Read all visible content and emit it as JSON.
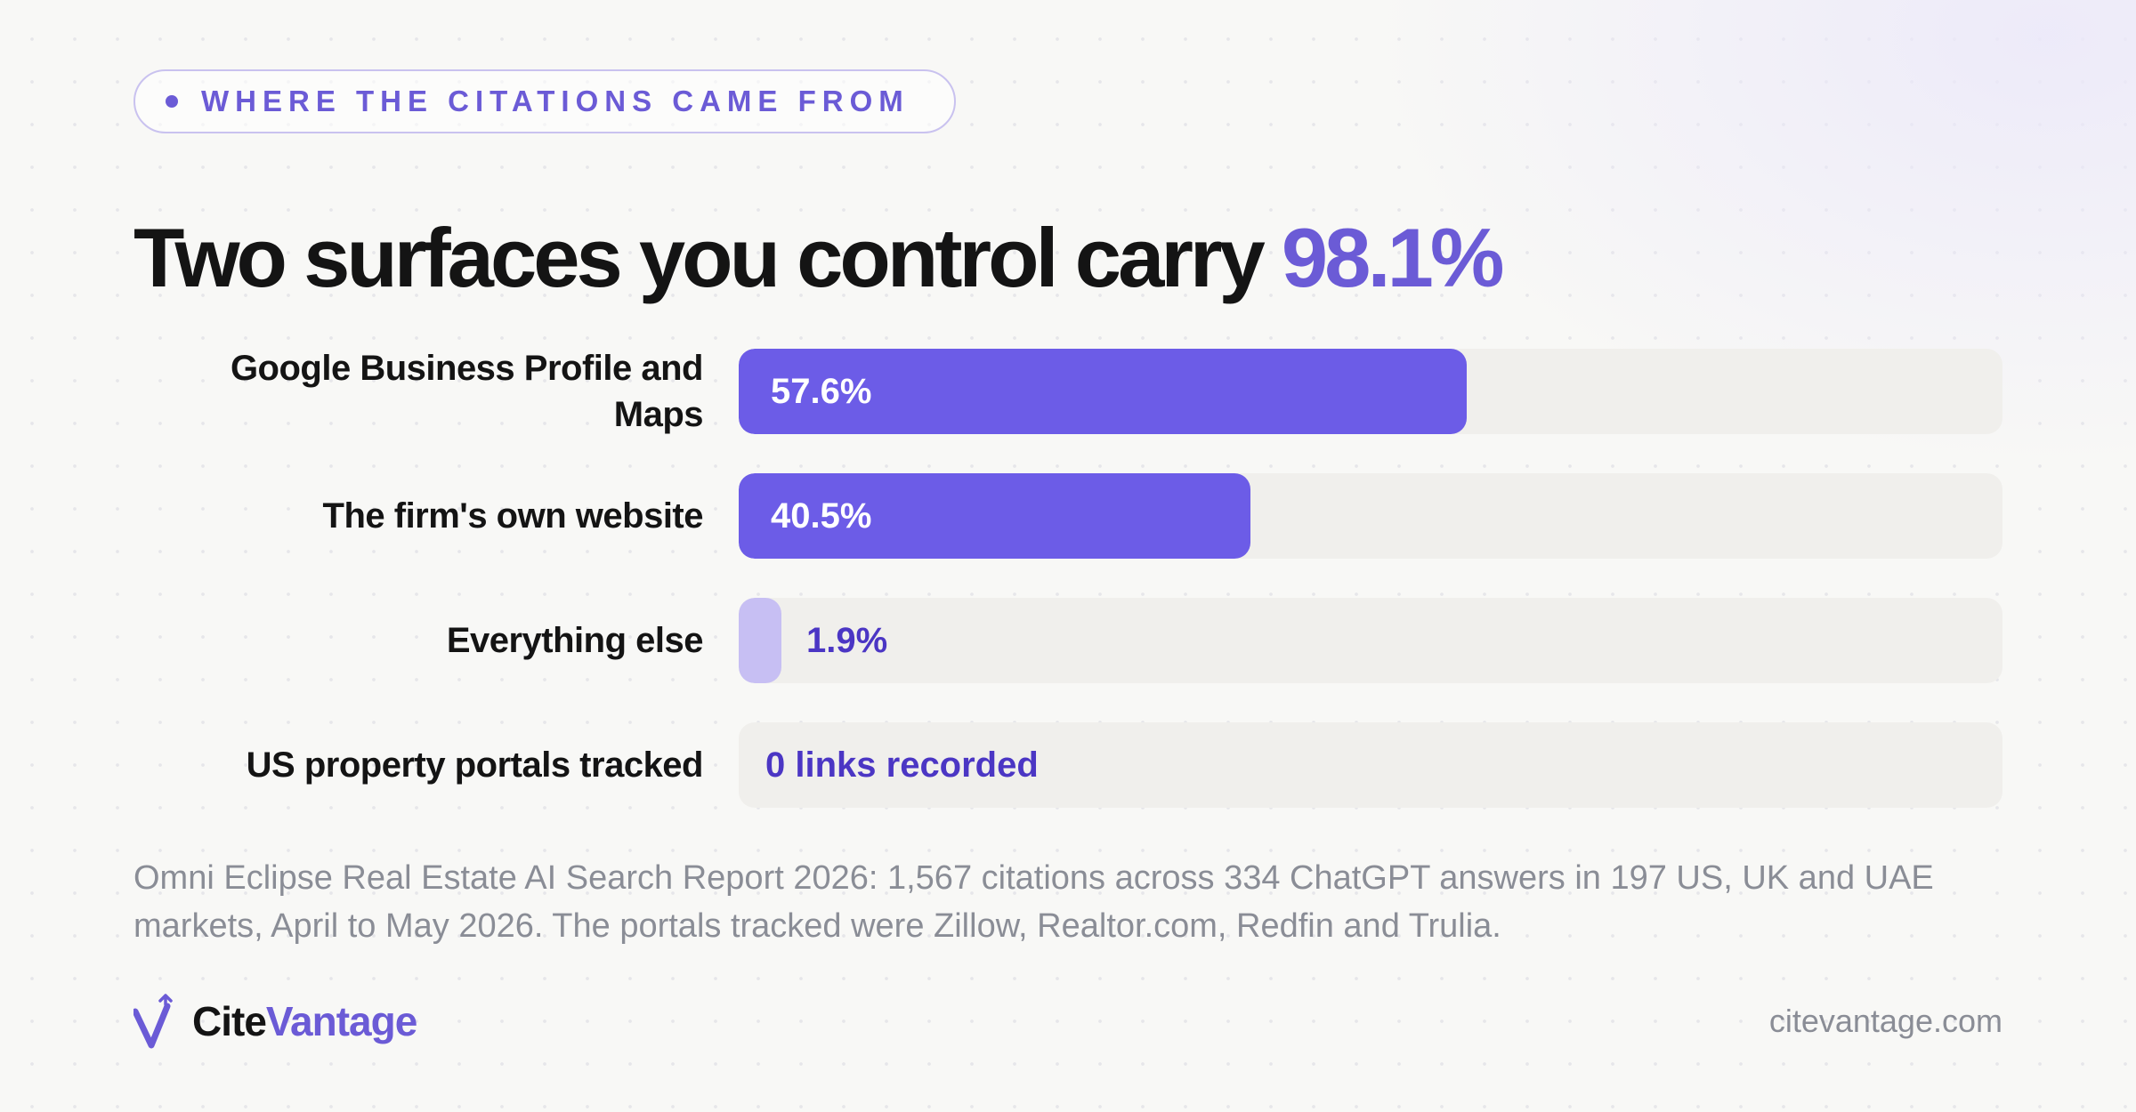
{
  "eyebrow": "WHERE THE CITATIONS CAME FROM",
  "headline": {
    "text": "Two surfaces you control carry ",
    "highlight": "98.1%"
  },
  "colors": {
    "accent": "#6b5bd6",
    "bar_primary": "#6c5ce7",
    "bar_light": "#c7bff3",
    "value_dark_text": "#4b36c4",
    "track": "#f0efec"
  },
  "chart_data": {
    "type": "bar",
    "orientation": "horizontal",
    "title": "Two surfaces you control carry 98.1%",
    "xlim": [
      0,
      100
    ],
    "unit": "%",
    "categories": [
      "Google Business Profile and Maps",
      "The firm's own website",
      "Everything else",
      "US property portals tracked"
    ],
    "values": [
      57.6,
      40.5,
      1.9,
      0
    ],
    "value_labels": [
      "57.6%",
      "40.5%",
      "1.9%",
      "0 links recorded"
    ]
  },
  "footnote": "Omni Eclipse Real Estate AI Search Report 2026: 1,567 citations across 334 ChatGPT answers in 197 US, UK and UAE markets, April to May 2026. The portals tracked were Zillow, Realtor.com, Redfin and Trulia.",
  "brand": {
    "name_part1": "Cite",
    "name_part2": "Vantage",
    "logo_icon": "v-checkmark-spark-icon"
  },
  "domain": "citevantage.com"
}
